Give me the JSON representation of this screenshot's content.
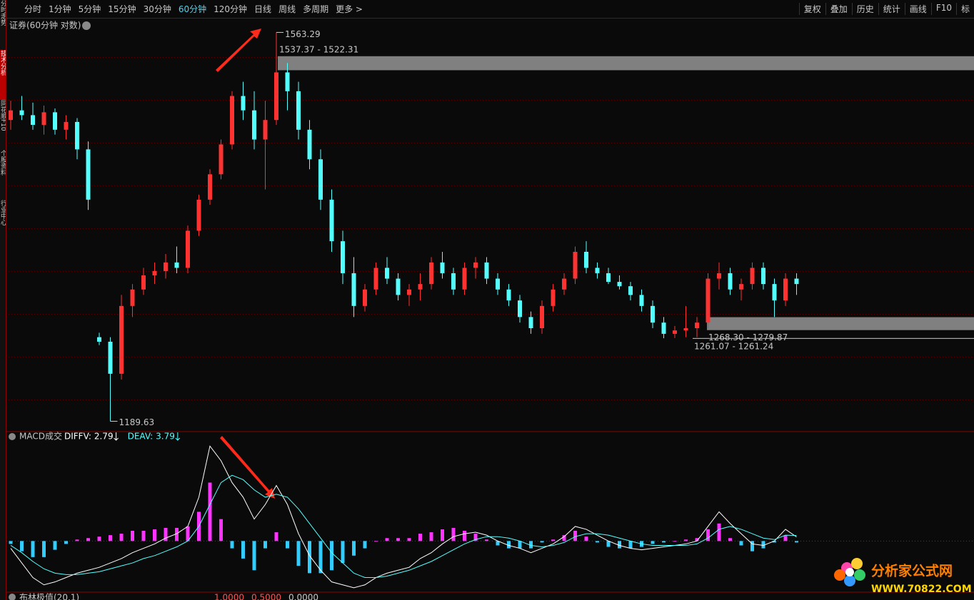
{
  "toolbar": {
    "periods": [
      "分时",
      "1分钟",
      "5分钟",
      "15分钟",
      "30分钟",
      "60分钟",
      "120分钟",
      "日线",
      "周线",
      "多周期",
      "更多 >"
    ],
    "active": "60分钟",
    "tools": [
      "复权",
      "叠加",
      "历史",
      "统计",
      "画线",
      "F10",
      "标"
    ]
  },
  "sidebar": {
    "tabs": [
      "分时走势",
      "技术分析",
      "同花顺F10",
      "个股资料",
      "行业中心"
    ],
    "active": "技术分析"
  },
  "chart_data": [
    {
      "type": "candlestick",
      "title": "证券(60分钟 对数)",
      "log_scale": true,
      "ylim": [
        1181,
        1577
      ],
      "up_color": "#ff3232",
      "down_color": "#54ffff",
      "open": [
        1470,
        1480,
        1475,
        1465,
        1478,
        1460,
        1468,
        1440,
        1262,
        1258,
        1230,
        1290,
        1305,
        1318,
        1322,
        1330,
        1325,
        1360,
        1390,
        1415,
        1445,
        1495,
        1480,
        1450,
        1470,
        1520,
        1500,
        1460,
        1430,
        1390,
        1350,
        1320,
        1290,
        1305,
        1325,
        1315,
        1300,
        1305,
        1310,
        1330,
        1320,
        1305,
        1325,
        1330,
        1315,
        1305,
        1295,
        1280,
        1270,
        1290,
        1305,
        1315,
        1340,
        1325,
        1320,
        1312,
        1308,
        1300,
        1290,
        1275,
        1265,
        1268,
        1270,
        1275,
        1315,
        1320,
        1305,
        1310,
        1325,
        1310,
        1295,
        1315
      ],
      "high": [
        1490,
        1495,
        1488,
        1485,
        1482,
        1475,
        1472,
        1448,
        1266,
        1262,
        1300,
        1310,
        1325,
        1330,
        1338,
        1345,
        1365,
        1395,
        1420,
        1450,
        1500,
        1510,
        1500,
        1490,
        1563.29,
        1530,
        1510,
        1470,
        1440,
        1400,
        1360,
        1335,
        1310,
        1330,
        1335,
        1320,
        1310,
        1320,
        1335,
        1340,
        1325,
        1330,
        1335,
        1335,
        1320,
        1310,
        1300,
        1285,
        1295,
        1310,
        1320,
        1345,
        1350,
        1330,
        1325,
        1318,
        1312,
        1305,
        1295,
        1280,
        1272,
        1290,
        1280,
        1320,
        1330,
        1325,
        1315,
        1330,
        1330,
        1315,
        1320,
        1320
      ],
      "low": [
        1460,
        1470,
        1460,
        1455,
        1455,
        1450,
        1430,
        1380,
        1255,
        1189.63,
        1225,
        1280,
        1300,
        1310,
        1315,
        1320,
        1320,
        1355,
        1385,
        1410,
        1440,
        1470,
        1440,
        1400,
        1465,
        1480,
        1450,
        1420,
        1380,
        1340,
        1310,
        1280,
        1285,
        1300,
        1310,
        1295,
        1290,
        1295,
        1305,
        1315,
        1300,
        1300,
        1315,
        1310,
        1300,
        1290,
        1275,
        1265,
        1265,
        1285,
        1300,
        1310,
        1320,
        1315,
        1310,
        1305,
        1295,
        1285,
        1270,
        1261.07,
        1261.24,
        1262,
        1262,
        1270,
        1305,
        1300,
        1295,
        1305,
        1305,
        1280,
        1290,
        1300
      ],
      "close": [
        1480,
        1475,
        1465,
        1478,
        1460,
        1468,
        1440,
        1390,
        1258,
        1230,
        1290,
        1305,
        1318,
        1322,
        1330,
        1325,
        1360,
        1390,
        1415,
        1445,
        1495,
        1480,
        1450,
        1470,
        1520,
        1500,
        1460,
        1430,
        1390,
        1350,
        1320,
        1290,
        1305,
        1325,
        1315,
        1300,
        1305,
        1310,
        1330,
        1320,
        1305,
        1325,
        1330,
        1315,
        1305,
        1295,
        1280,
        1270,
        1290,
        1305,
        1315,
        1340,
        1325,
        1320,
        1312,
        1308,
        1300,
        1290,
        1275,
        1265,
        1268,
        1270,
        1275,
        1315,
        1320,
        1305,
        1310,
        1325,
        1310,
        1295,
        1315,
        1310
      ],
      "zones": [
        {
          "label": "1537.37 - 1522.31",
          "top": 1537.37,
          "bottom": 1522.31,
          "color": "#808080"
        },
        {
          "label": "1268.30 - 1279.87",
          "top": 1279.87,
          "bottom": 1268.3,
          "color": "#808080"
        },
        {
          "label": "1261.07 - 1261.24",
          "top": 1261.24,
          "bottom": 1261.07,
          "color": "#c8c8c8"
        }
      ]
    },
    {
      "type": "macd",
      "title": "MACD成交",
      "ylim": [
        -35,
        70
      ],
      "pos_color": "#ff33ff",
      "neg_color": "#33ccff",
      "series": [
        {
          "name": "DIFFV:",
          "color": "#ffffff",
          "values": [
            -5,
            -15,
            -25,
            -30,
            -28,
            -25,
            -22,
            -20,
            -18,
            -15,
            -12,
            -8,
            -5,
            -2,
            2,
            5,
            10,
            30,
            65,
            55,
            40,
            30,
            15,
            25,
            38,
            25,
            5,
            -10,
            -20,
            -28,
            -30,
            -32,
            -30,
            -25,
            -22,
            -20,
            -18,
            -12,
            -8,
            -2,
            3,
            5,
            6,
            4,
            0,
            -3,
            -5,
            -8,
            -5,
            -2,
            3,
            10,
            8,
            4,
            0,
            -3,
            -5,
            -6,
            -5,
            -4,
            -3,
            -2,
            0,
            10,
            20,
            12,
            5,
            -2,
            -3,
            0,
            8,
            2.79
          ]
        },
        {
          "name": "DEAV:",
          "color": "#54ffff",
          "values": [
            -3,
            -8,
            -14,
            -19,
            -22,
            -23,
            -23,
            -22,
            -21,
            -19,
            -17,
            -15,
            -12,
            -10,
            -7,
            -4,
            0,
            10,
            25,
            40,
            45,
            42,
            35,
            30,
            32,
            30,
            22,
            12,
            2,
            -8,
            -15,
            -22,
            -25,
            -25,
            -24,
            -22,
            -20,
            -17,
            -14,
            -10,
            -6,
            -2,
            1,
            3,
            3,
            2,
            0,
            -3,
            -4,
            -3,
            -1,
            3,
            5,
            5,
            4,
            2,
            0,
            -2,
            -3,
            -3,
            -3,
            -3,
            -2,
            2,
            8,
            10,
            8,
            5,
            2,
            1,
            4,
            3.79
          ]
        }
      ],
      "histogram": [
        -2,
        -7,
        -11,
        -11,
        -6,
        -2,
        1,
        2,
        3,
        4,
        5,
        7,
        7,
        8,
        9,
        9,
        10,
        20,
        40,
        15,
        -5,
        -12,
        -20,
        -5,
        6,
        -5,
        -17,
        -22,
        -22,
        -20,
        -15,
        -10,
        -5,
        0,
        2,
        2,
        2,
        5,
        6,
        8,
        9,
        7,
        5,
        1,
        -3,
        -5,
        -5,
        -5,
        -1,
        1,
        4,
        7,
        3,
        -1,
        -4,
        -5,
        -5,
        -4,
        -2,
        -1,
        0,
        1,
        2,
        8,
        12,
        2,
        -3,
        -7,
        -5,
        -1,
        4,
        -1
      ]
    }
  ],
  "bottom_indicator": {
    "title": "布林极值(20,1)",
    "levels": [
      {
        "value": 1,
        "label": "1.0000"
      },
      {
        "value": 0.5,
        "label": "0.5000"
      },
      {
        "value": 0,
        "label": "0.0000"
      }
    ]
  },
  "watermark": {
    "title": "分析家公式网",
    "url": "WWW.70822.COM"
  }
}
